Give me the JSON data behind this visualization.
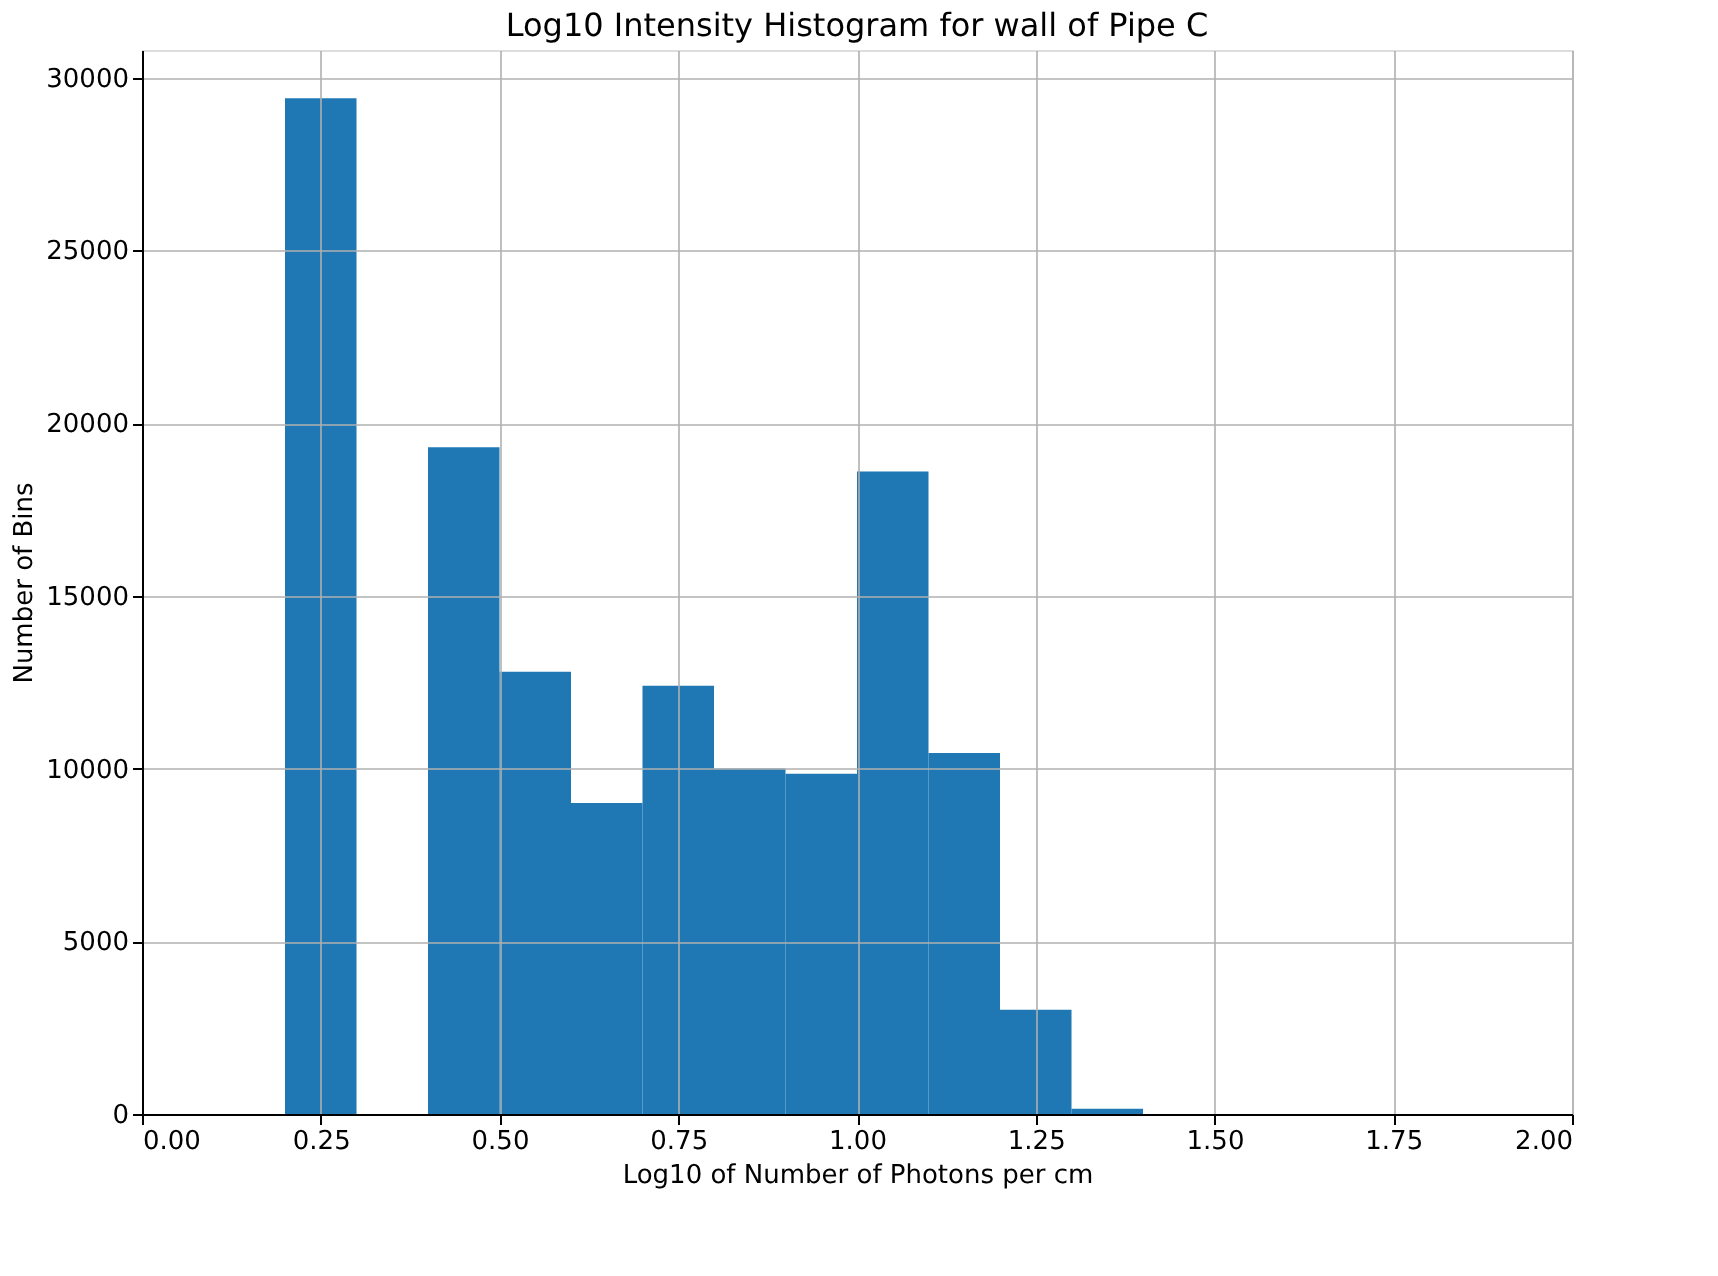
{
  "chart_data": {
    "type": "histogram",
    "title": "Log10 Intensity Histogram for wall of Pipe C",
    "xlabel": "Log10 of Number of Photons per cm",
    "ylabel": "Number of Bins",
    "bins": [
      0.2,
      0.3,
      0.4,
      0.5,
      0.6,
      0.7,
      0.8,
      0.9,
      1.0,
      1.1,
      1.2,
      1.3,
      1.4
    ],
    "values": [
      29400,
      0,
      19300,
      12800,
      9000,
      12400,
      10000,
      9850,
      18600,
      10450,
      3020,
      150
    ],
    "color": "#1f77b4",
    "xlim": [
      0,
      2
    ],
    "xticks": [
      {
        "value": 0,
        "label": "0.00"
      },
      {
        "value": 0.25,
        "label": "0.25"
      },
      {
        "value": 0.5,
        "label": "0.50"
      },
      {
        "value": 0.75,
        "label": "0.75"
      },
      {
        "value": 1,
        "label": "1.00"
      },
      {
        "value": 1.25,
        "label": "1.25"
      },
      {
        "value": 1.5,
        "label": "1.50"
      },
      {
        "value": 1.75,
        "label": "1.75"
      },
      {
        "value": 2,
        "label": "2.00"
      }
    ],
    "ylim": [
      0,
      30800
    ],
    "yticks": [
      0,
      5000,
      10000,
      15000,
      20000,
      25000,
      30000
    ],
    "grid": true
  }
}
